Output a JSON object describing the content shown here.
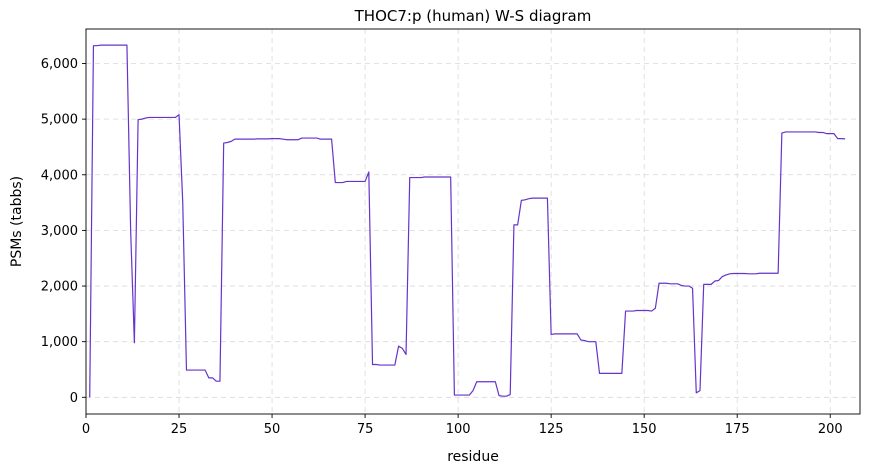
{
  "chart_data": {
    "type": "line",
    "title": "THOC7:p (human) W-S diagram",
    "xlabel": "residue",
    "ylabel": "PSMs (tabbs)",
    "xlim": [
      0,
      208
    ],
    "ylim": [
      -300,
      6620
    ],
    "xticks": [
      0,
      25,
      50,
      75,
      100,
      125,
      150,
      175,
      200
    ],
    "xtick_labels": [
      "0",
      "25",
      "50",
      "75",
      "100",
      "125",
      "150",
      "175",
      "200"
    ],
    "yticks": [
      0,
      1000,
      2000,
      3000,
      4000,
      5000,
      6000
    ],
    "ytick_labels": [
      "0",
      "1,000",
      "2,000",
      "3,000",
      "4,000",
      "5,000",
      "6,000"
    ],
    "grid": true,
    "line_color": "#6633cc",
    "series": [
      {
        "x": [
          1,
          2,
          3,
          4,
          5,
          6,
          7,
          8,
          9,
          10,
          11,
          12,
          13,
          14,
          15,
          16,
          17,
          18,
          19,
          20,
          21,
          22,
          23,
          24,
          25,
          26,
          27,
          28,
          29,
          30,
          31,
          32,
          33,
          34,
          35,
          36,
          37,
          38,
          39,
          40,
          41,
          42,
          43,
          44,
          45,
          46,
          47,
          48,
          49,
          50,
          51,
          52,
          53,
          54,
          55,
          56,
          57,
          58,
          59,
          60,
          61,
          62,
          63,
          64,
          65,
          66,
          67,
          68,
          69,
          70,
          71,
          72,
          73,
          74,
          75,
          76,
          77,
          78,
          79,
          80,
          81,
          82,
          83,
          84,
          85,
          86,
          87,
          88,
          89,
          90,
          91,
          92,
          93,
          94,
          95,
          96,
          97,
          98,
          99,
          100,
          101,
          102,
          103,
          104,
          105,
          106,
          107,
          108,
          109,
          110,
          111,
          112,
          113,
          114,
          115,
          116,
          117,
          118,
          119,
          120,
          121,
          122,
          123,
          124,
          125,
          126,
          127,
          128,
          129,
          130,
          131,
          132,
          133,
          134,
          135,
          136,
          137,
          138,
          139,
          140,
          141,
          142,
          143,
          144,
          145,
          146,
          147,
          148,
          149,
          150,
          151,
          152,
          153,
          154,
          155,
          156,
          157,
          158,
          159,
          160,
          161,
          162,
          163,
          164,
          165,
          166,
          167,
          168,
          169,
          170,
          171,
          172,
          173,
          174,
          175,
          176,
          177,
          178,
          179,
          180,
          181,
          182,
          183,
          184,
          185,
          186,
          187,
          188,
          189,
          190,
          191,
          192,
          193,
          194,
          195,
          196,
          197,
          198,
          199,
          200,
          201,
          202,
          203,
          204
        ],
        "y": [
          0,
          6320,
          6320,
          6330,
          6330,
          6330,
          6330,
          6330,
          6330,
          6330,
          6330,
          3000,
          980,
          4990,
          5000,
          5020,
          5030,
          5030,
          5030,
          5030,
          5030,
          5030,
          5030,
          5030,
          5080,
          3500,
          490,
          490,
          490,
          490,
          490,
          490,
          350,
          350,
          290,
          290,
          4570,
          4580,
          4600,
          4640,
          4640,
          4640,
          4640,
          4640,
          4640,
          4645,
          4645,
          4645,
          4645,
          4650,
          4650,
          4650,
          4640,
          4630,
          4630,
          4630,
          4630,
          4660,
          4660,
          4660,
          4660,
          4660,
          4640,
          4640,
          4640,
          4640,
          3860,
          3860,
          3860,
          3880,
          3880,
          3880,
          3880,
          3880,
          3880,
          4050,
          590,
          590,
          580,
          580,
          580,
          580,
          580,
          920,
          880,
          770,
          3950,
          3950,
          3950,
          3950,
          3960,
          3960,
          3960,
          3960,
          3960,
          3960,
          3960,
          3960,
          40,
          40,
          40,
          40,
          40,
          120,
          280,
          280,
          280,
          280,
          280,
          280,
          30,
          20,
          20,
          50,
          3100,
          3100,
          3540,
          3550,
          3570,
          3580,
          3580,
          3580,
          3580,
          3580,
          1130,
          1140,
          1140,
          1140,
          1140,
          1140,
          1140,
          1140,
          1030,
          1020,
          1000,
          1000,
          1000,
          430,
          430,
          430,
          430,
          430,
          430,
          430,
          1550,
          1550,
          1550,
          1560,
          1560,
          1560,
          1560,
          1550,
          1600,
          2050,
          2050,
          2050,
          2040,
          2040,
          2040,
          2010,
          2000,
          2000,
          1960,
          80,
          120,
          2030,
          2030,
          2030,
          2090,
          2100,
          2170,
          2200,
          2220,
          2225,
          2225,
          2225,
          2225,
          2220,
          2220,
          2220,
          2230,
          2230,
          2230,
          2230,
          2230,
          2230,
          4750,
          4770,
          4770,
          4770,
          4770,
          4770,
          4770,
          4770,
          4770,
          4770,
          4760,
          4760,
          4740,
          4740,
          4740,
          4650,
          4650,
          4645
        ]
      }
    ]
  }
}
